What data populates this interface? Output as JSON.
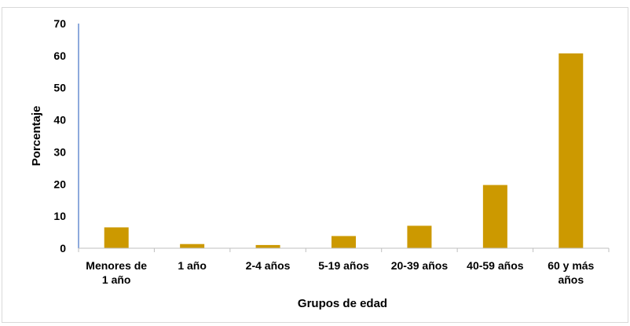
{
  "chart_data": {
    "type": "bar",
    "categories": [
      [
        "Menores de",
        "1 año"
      ],
      [
        "1 año"
      ],
      [
        "2-4 años"
      ],
      [
        "5-19 años"
      ],
      [
        "20-39 años"
      ],
      [
        "40-59 años"
      ],
      [
        "60 y más",
        "años"
      ]
    ],
    "values": [
      6.5,
      1.3,
      1.0,
      3.8,
      7.0,
      19.7,
      60.7
    ],
    "xlabel": "Grupos de edad",
    "ylabel": "Porcentaje",
    "ylim": [
      0,
      70
    ],
    "yticks": [
      0,
      10,
      20,
      30,
      40,
      50,
      60,
      70
    ],
    "bar_color": "#cc9900",
    "grid": false,
    "legend": "none"
  }
}
